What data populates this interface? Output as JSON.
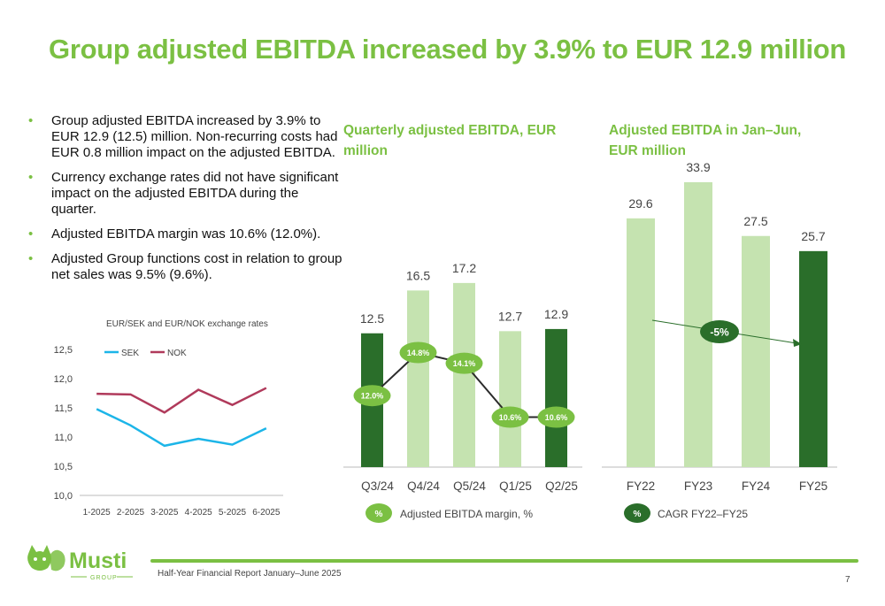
{
  "title": "Group adjusted EBITDA increased by 3.9% to EUR 12.9 million",
  "bullets": [
    "Group adjusted EBITDA increased by 3.9% to EUR 12.9 (12.5) million. Non-recurring costs had EUR 0.8 million impact on the adjusted EBITDA.",
    "Currency exchange rates did not have significant impact on the adjusted EBITDA during the quarter.",
    "Adjusted EBITDA margin was 10.6% (12.0%).",
    "Adjusted Group functions cost in relation to group net sales was 9.5% (9.6%)."
  ],
  "bullet_glyph": "•",
  "footer": {
    "text": "Half-Year Financial Report January–June 2025",
    "page": "7"
  },
  "logo": {
    "word": "Musti",
    "sub": "GROUP"
  },
  "colors": {
    "accent": "#7bc043",
    "dark_green": "#2a6e2a",
    "light_green": "#c5e3b0",
    "margin_bubble": "#7bc043",
    "sek": "#1cb5e8",
    "nok": "#b03a5b"
  },
  "chart_data": [
    {
      "type": "line",
      "title": "EUR/SEK and EUR/NOK exchange rates",
      "categories": [
        "1-2025",
        "2-2025",
        "3-2025",
        "4-2025",
        "5-2025",
        "6-2025"
      ],
      "series": [
        {
          "name": "SEK",
          "values": [
            11.48,
            11.2,
            10.85,
            10.97,
            10.87,
            11.15
          ]
        },
        {
          "name": "NOK",
          "values": [
            11.74,
            11.73,
            11.42,
            11.81,
            11.55,
            11.84
          ]
        }
      ],
      "ylim": [
        10.0,
        12.5
      ],
      "yticks": [
        "10,0",
        "10,5",
        "11,0",
        "11,5",
        "12,0",
        "12,5"
      ],
      "legend": "top-left",
      "grid": false
    },
    {
      "type": "bar",
      "title": "Quarterly adjusted EBITDA, EUR million",
      "categories": [
        "Q3/24",
        "Q4/24",
        "Q5/24",
        "Q1/25",
        "Q2/25"
      ],
      "values": [
        12.5,
        16.5,
        17.2,
        12.7,
        12.9
      ],
      "value_labels": [
        "12.5",
        "16.5",
        "17.2",
        "12.7",
        "12.9"
      ],
      "highlight": [
        true,
        false,
        false,
        false,
        true
      ],
      "margin_series": {
        "name": "Adjusted EBITDA margin, %",
        "values": [
          12.0,
          14.8,
          14.1,
          10.6,
          10.6
        ],
        "labels": [
          "12.0%",
          "14.8%",
          "14.1%",
          "10.6%",
          "10.6%"
        ]
      },
      "legend_symbol": "%",
      "legend_label": "Adjusted EBITDA margin, %",
      "ylim": [
        0,
        20
      ]
    },
    {
      "type": "bar",
      "title": "Adjusted EBITDA in Jan–Jun, EUR million",
      "categories": [
        "FY22",
        "FY23",
        "FY24",
        "FY25"
      ],
      "values": [
        29.6,
        33.9,
        27.5,
        25.7
      ],
      "value_labels": [
        "29.6",
        "33.9",
        "27.5",
        "25.7"
      ],
      "highlight": [
        false,
        false,
        false,
        true
      ],
      "cagr_label": "-5%",
      "legend_symbol": "%",
      "legend_label": "CAGR FY22–FY25",
      "ylim": [
        0,
        36
      ]
    }
  ]
}
